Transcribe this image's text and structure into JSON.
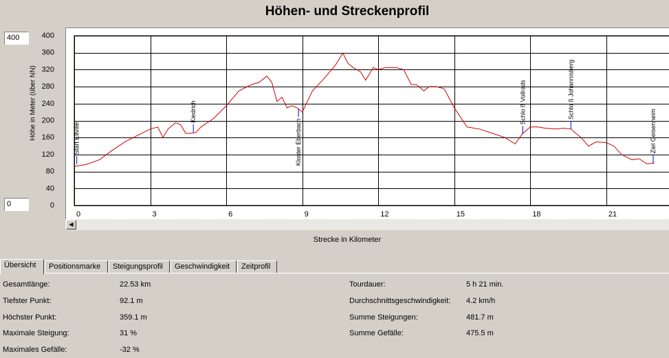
{
  "window": {
    "title": "Höhen- und Streckenprofil"
  },
  "controls": {
    "y_max_value": "400",
    "y_min_value": "0"
  },
  "chart_data": {
    "type": "line",
    "title": "Höhen- und Streckenprofil",
    "xlabel": "Strecke in Kilometer",
    "ylabel": "Höhe in Meter (über NN)",
    "xlim": [
      0,
      23.5
    ],
    "ylim": [
      0,
      400
    ],
    "x_ticks": [
      "0",
      "3",
      "6",
      "9",
      "12",
      "15",
      "18",
      "21"
    ],
    "y_ticks": [
      "0",
      "40",
      "80",
      "120",
      "160",
      "200",
      "240",
      "280",
      "320",
      "360",
      "400"
    ],
    "grid": true,
    "line_color": "#cc0000",
    "series": [
      {
        "x": [
          0,
          0.5,
          1.0,
          1.5,
          2.0,
          2.5,
          3.0,
          3.3,
          3.5,
          3.7,
          4.0,
          4.2,
          4.4,
          4.6,
          4.8,
          5.0,
          5.5,
          6.0,
          6.5,
          7.0,
          7.3,
          7.6,
          7.8,
          8.0,
          8.2,
          8.4,
          8.6,
          8.8,
          9.0,
          9.2,
          9.4,
          9.8,
          10.3,
          10.6,
          10.8,
          11.0,
          11.3,
          11.5,
          11.8,
          12.0,
          12.3,
          12.7,
          13.0,
          13.3,
          13.5,
          13.8,
          14.0,
          14.3,
          14.6,
          15.0,
          15.5,
          16.0,
          16.5,
          17.0,
          17.4,
          17.7,
          18.0,
          18.3,
          18.6,
          19.0,
          19.3,
          19.6,
          20.0,
          20.3,
          20.6,
          21.0,
          21.3,
          21.6,
          22.0,
          22.3,
          22.6,
          22.9
        ],
        "y": [
          92,
          97,
          108,
          130,
          150,
          165,
          180,
          185,
          160,
          180,
          195,
          190,
          170,
          170,
          172,
          185,
          205,
          235,
          270,
          285,
          290,
          305,
          290,
          245,
          255,
          230,
          235,
          230,
          220,
          245,
          270,
          295,
          330,
          359,
          335,
          325,
          315,
          295,
          325,
          320,
          325,
          325,
          320,
          285,
          285,
          270,
          280,
          280,
          275,
          230,
          185,
          180,
          170,
          160,
          145,
          170,
          185,
          185,
          182,
          180,
          182,
          180,
          160,
          140,
          150,
          148,
          140,
          120,
          108,
          110,
          98,
          100
        ]
      }
    ],
    "annotations": [
      {
        "label": "Start  Eltville",
        "x": 0.1,
        "y": 97
      },
      {
        "label": "Kiedrich",
        "x": 4.7,
        "y": 172
      },
      {
        "label": "Kloster  Eberbach",
        "x": 8.85,
        "y": 228
      },
      {
        "label": "Schlo ß  Vollrads",
        "x": 17.7,
        "y": 168
      },
      {
        "label": "Schlo ß  Johannisberg",
        "x": 19.6,
        "y": 180
      },
      {
        "label": "Ziel  Geisenheim",
        "x": 22.85,
        "y": 100
      }
    ]
  },
  "tabs": [
    {
      "label": "Übersicht",
      "active": true
    },
    {
      "label": "Positionsmarke",
      "active": false
    },
    {
      "label": "Steigungsprofil",
      "active": false
    },
    {
      "label": "Geschwindigkeit",
      "active": false
    },
    {
      "label": "Zeitprofil",
      "active": false
    }
  ],
  "stats_left": [
    {
      "label": "Gesamtlänge:",
      "value": "22.53 km"
    },
    {
      "label": "Tiefster Punkt:",
      "value": "92.1 m"
    },
    {
      "label": "Höchster Punkt:",
      "value": "359.1 m"
    },
    {
      "label": "Maximale Steigung:",
      "value": "31 %"
    },
    {
      "label": "Maximales Gefälle:",
      "value": "-32 %"
    }
  ],
  "stats_right": [
    {
      "label": "Tourdauer:",
      "value": "5 h 21 min."
    },
    {
      "label": "Durchschnittsgeschwindigkeit:",
      "value": "4.2 km/h"
    },
    {
      "label": "Summe Steigungen:",
      "value": "481.7 m"
    },
    {
      "label": "Summe Gefälle:",
      "value": "475.5 m"
    }
  ],
  "icons": {
    "scroll_left": "triangle-left-icon"
  }
}
